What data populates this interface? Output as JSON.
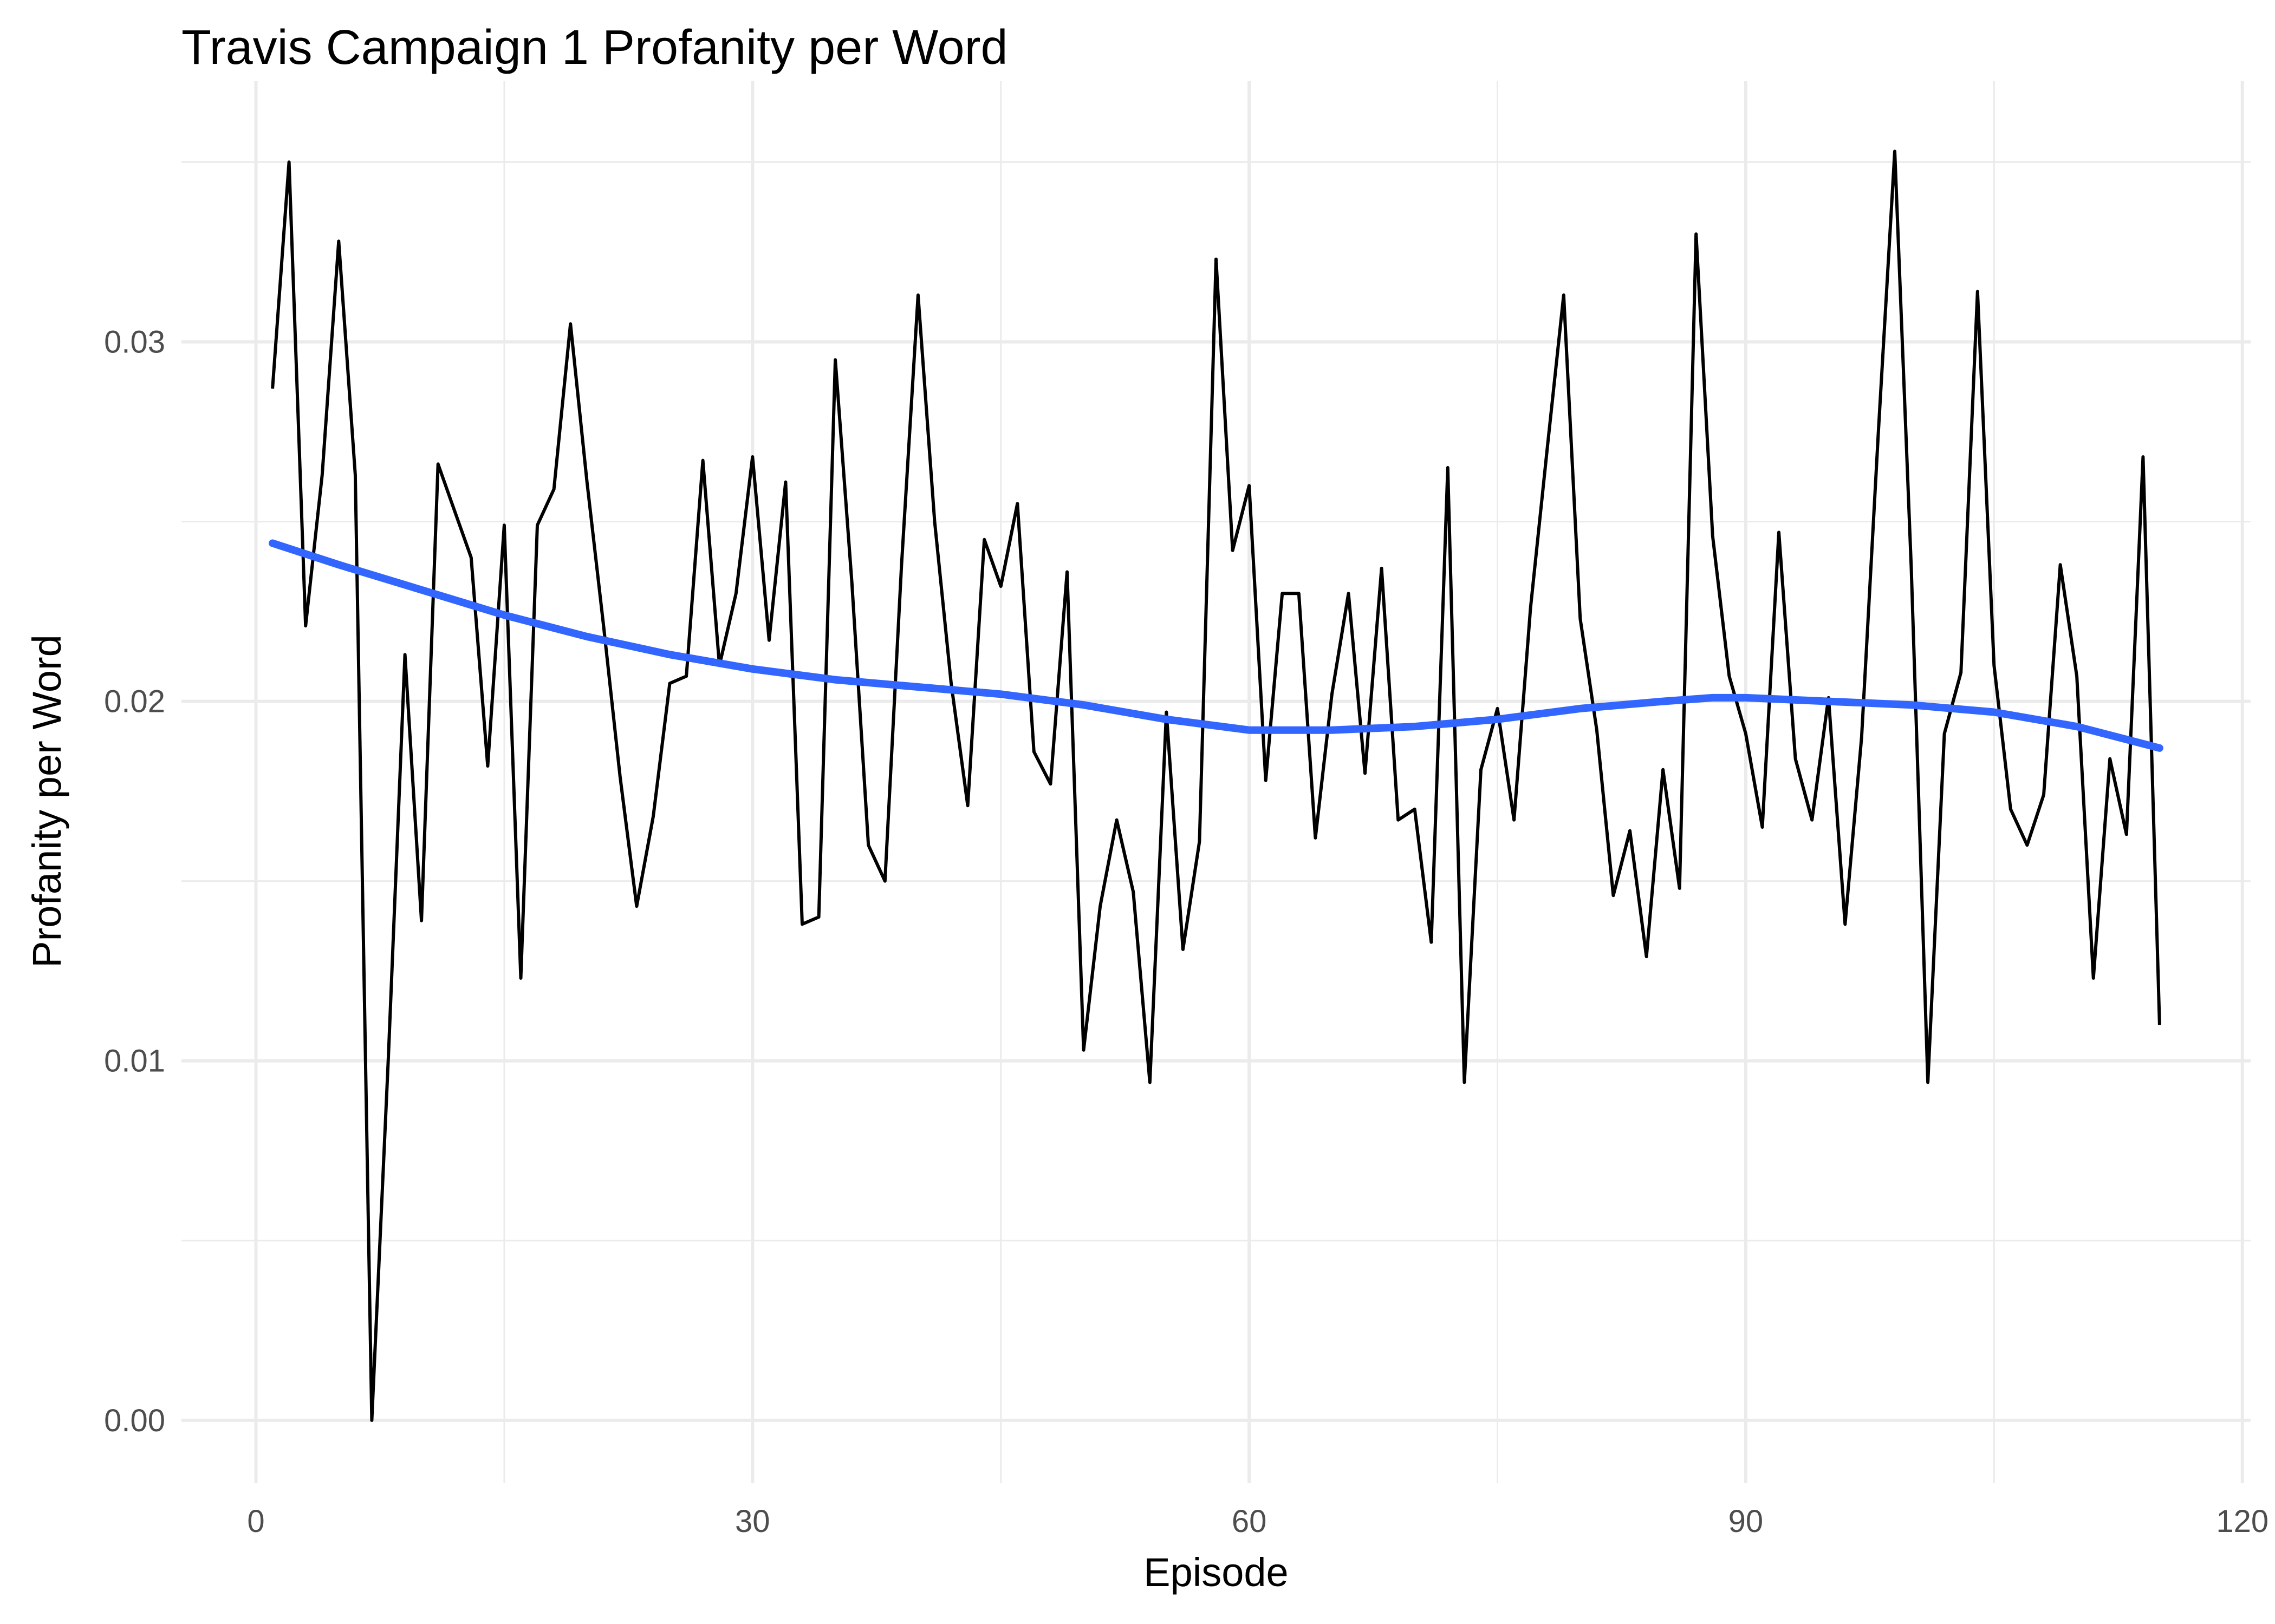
{
  "chart_data": {
    "type": "line",
    "title": "Travis Campaign 1 Profanity per Word",
    "xlabel": "Episode",
    "ylabel": "Profanity per Word",
    "xlim": [
      -4.5,
      120.5
    ],
    "ylim": [
      -0.00175,
      0.03725
    ],
    "x_ticks": [
      0,
      30,
      60,
      90,
      120
    ],
    "x_tick_labels": [
      "0",
      "30",
      "60",
      "90",
      "120"
    ],
    "y_ticks": [
      0,
      0.01,
      0.02,
      0.03
    ],
    "y_tick_labels": [
      "0.00",
      "0.01",
      "0.02",
      "0.03"
    ],
    "grid": true,
    "legend": "none",
    "series": [
      {
        "kind": "line",
        "color": "#000000",
        "x": [
          1,
          2,
          3,
          4,
          5,
          6,
          7,
          8,
          9,
          10,
          11,
          12,
          13,
          14,
          15,
          16,
          17,
          18,
          19,
          20,
          21,
          22,
          23,
          24,
          25,
          26,
          27,
          28,
          29,
          30,
          31,
          32,
          33,
          34,
          35,
          36,
          37,
          38,
          39,
          40,
          41,
          42,
          43,
          44,
          45,
          46,
          47,
          48,
          49,
          50,
          51,
          52,
          53,
          54,
          55,
          56,
          57,
          58,
          59,
          60,
          61,
          62,
          63,
          64,
          65,
          66,
          67,
          68,
          69,
          70,
          71,
          72,
          73,
          74,
          75,
          76,
          77,
          78,
          79,
          80,
          81,
          82,
          83,
          84,
          85,
          86,
          87,
          88,
          89,
          90,
          91,
          92,
          93,
          94,
          95,
          96,
          97,
          98,
          99,
          100,
          101,
          102,
          103,
          104,
          105,
          106,
          107,
          108,
          109,
          110,
          111,
          112,
          113,
          114,
          115
        ],
        "y": [
          0.0287,
          0.035,
          0.0221,
          0.0263,
          0.0328,
          0.0263,
          0.0,
          0.0101,
          0.0213,
          0.0139,
          0.0266,
          0.0253,
          0.024,
          0.0182,
          0.0249,
          0.0123,
          0.0249,
          0.0259,
          0.0305,
          0.0261,
          0.0221,
          0.0179,
          0.0143,
          0.0168,
          0.0205,
          0.0207,
          0.0267,
          0.021,
          0.023,
          0.0268,
          0.0217,
          0.0261,
          0.0138,
          0.014,
          0.0295,
          0.0233,
          0.016,
          0.015,
          0.0238,
          0.0313,
          0.025,
          0.0205,
          0.0171,
          0.0245,
          0.0232,
          0.0255,
          0.0186,
          0.0177,
          0.0236,
          0.0103,
          0.0143,
          0.0167,
          0.0147,
          0.0094,
          0.0197,
          0.0131,
          0.0161,
          0.0323,
          0.0242,
          0.026,
          0.0178,
          0.023,
          0.023,
          0.0162,
          0.0202,
          0.023,
          0.018,
          0.0237,
          0.0167,
          0.017,
          0.0133,
          0.0265,
          0.0094,
          0.0181,
          0.0198,
          0.0167,
          0.0226,
          0.027,
          0.0313,
          0.0223,
          0.0192,
          0.0146,
          0.0164,
          0.0129,
          0.0181,
          0.0148,
          0.033,
          0.0246,
          0.0207,
          0.0191,
          0.0165,
          0.0247,
          0.0184,
          0.0167,
          0.0201,
          0.0138,
          0.019,
          0.0274,
          0.0353,
          0.0237,
          0.0094,
          0.0191,
          0.0208,
          0.0314,
          0.021,
          0.017,
          0.016,
          0.0174,
          0.0238,
          0.0207,
          0.0123,
          0.0184,
          0.0163,
          0.0268,
          0.011
        ]
      },
      {
        "kind": "smooth",
        "color": "#3366ff",
        "x": [
          1,
          5,
          10,
          15,
          20,
          25,
          30,
          35,
          40,
          45,
          50,
          55,
          60,
          65,
          70,
          75,
          80,
          85,
          88,
          90,
          95,
          100,
          105,
          110,
          115
        ],
        "y": [
          0.0244,
          0.0238,
          0.0231,
          0.0224,
          0.0218,
          0.0213,
          0.0209,
          0.0206,
          0.0204,
          0.0202,
          0.0199,
          0.0195,
          0.0192,
          0.0192,
          0.0193,
          0.0195,
          0.0198,
          0.02,
          0.0201,
          0.0201,
          0.02,
          0.0199,
          0.0197,
          0.0193,
          0.0187
        ]
      }
    ]
  }
}
